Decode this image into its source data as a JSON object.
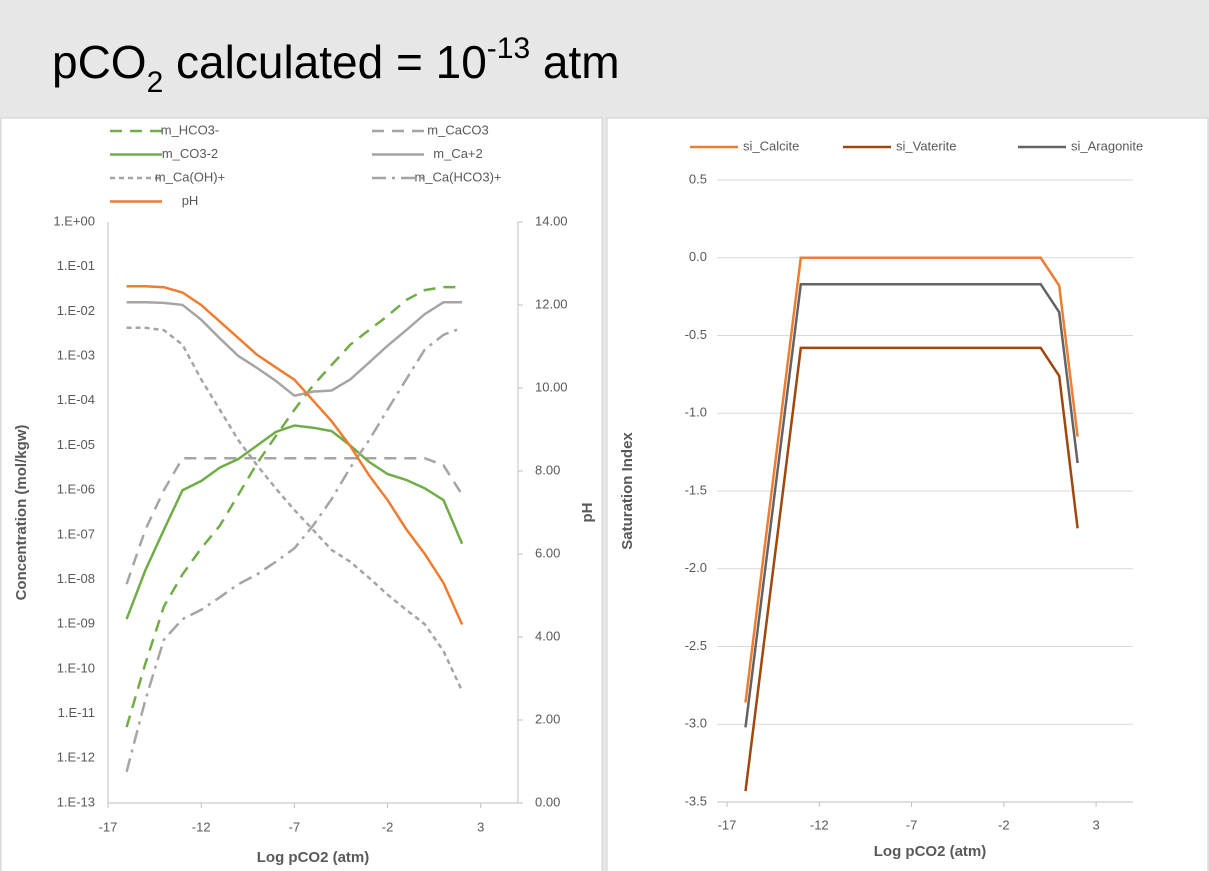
{
  "header": {
    "title": [
      "pCO",
      "2",
      " calculated = 10",
      "-13",
      " atm"
    ]
  },
  "chart_data": [
    {
      "type": "line",
      "xlabel": "Log pCO2 (atm)",
      "ylabel": "Concentration (mol/kgw)",
      "y2label": "pH",
      "xlim": [
        -17,
        5
      ],
      "xticks": [
        -17,
        -12,
        -7,
        -2,
        3
      ],
      "ylim": [
        1e-13,
        1
      ],
      "ylog": true,
      "yticks": [
        {
          "value": 1,
          "label": "1.E+00"
        },
        {
          "value": 0.1,
          "label": "1.E-01"
        },
        {
          "value": 0.01,
          "label": "1.E-02"
        },
        {
          "value": 0.001,
          "label": "1.E-03"
        },
        {
          "value": 0.0001,
          "label": "1.E-04"
        },
        {
          "value": 1e-05,
          "label": "1.E-05"
        },
        {
          "value": 1e-06,
          "label": "1.E-06"
        },
        {
          "value": 1e-07,
          "label": "1.E-07"
        },
        {
          "value": 1e-08,
          "label": "1.E-08"
        },
        {
          "value": 1e-09,
          "label": "1.E-09"
        },
        {
          "value": 1e-10,
          "label": "1.E-10"
        },
        {
          "value": 1e-11,
          "label": "1.E-11"
        },
        {
          "value": 1e-12,
          "label": "1.E-12"
        },
        {
          "value": 1e-13,
          "label": "1.E-13"
        }
      ],
      "y2lim": [
        0,
        14
      ],
      "y2ticks": [
        {
          "value": 0,
          "label": "0.00"
        },
        {
          "value": 2,
          "label": "2.00"
        },
        {
          "value": 4,
          "label": "4.00"
        },
        {
          "value": 6,
          "label": "6.00"
        },
        {
          "value": 8,
          "label": "8.00"
        },
        {
          "value": 10,
          "label": "10.00"
        },
        {
          "value": 12,
          "label": "12.00"
        },
        {
          "value": 14,
          "label": "14.00"
        }
      ],
      "grid": false,
      "x": [
        -16,
        -15,
        -14,
        -13,
        -12,
        -11,
        -10,
        -9,
        -8,
        -7,
        -6,
        -5,
        -4,
        -3,
        -2,
        -1,
        0,
        1,
        2
      ],
      "series": [
        {
          "name": "m_HCO3-",
          "color": "#70ad47",
          "dash": "dashed",
          "values": [
            5e-12,
            1.3e-10,
            2.5e-09,
            1.3e-08,
            5e-08,
            1.6e-07,
            8e-07,
            4e-06,
            1.6e-05,
            6.3e-05,
            0.00022,
            0.00063,
            0.0018,
            0.0038,
            0.0079,
            0.018,
            0.03,
            0.035,
            0.035
          ]
        },
        {
          "name": "m_CaCO3",
          "color": "#a5a5a5",
          "dash": "dashed",
          "values": [
            7.9e-09,
            1.3e-07,
            1e-06,
            5.2e-06,
            5.2e-06,
            5.2e-06,
            5.2e-06,
            5.2e-06,
            5.2e-06,
            5.2e-06,
            5.2e-06,
            5.2e-06,
            5.2e-06,
            5.2e-06,
            5.2e-06,
            5.2e-06,
            5.2e-06,
            3.6e-06,
            7.9e-07
          ]
        },
        {
          "name": "m_CO3-2",
          "color": "#70ad47",
          "dash": "solid",
          "values": [
            1.3e-09,
            1.6e-08,
            1.3e-07,
            1e-06,
            1.6e-06,
            3.2e-06,
            5e-06,
            1e-05,
            2e-05,
            2.8e-05,
            2.5e-05,
            2.1e-05,
            1e-05,
            4.3e-06,
            2.3e-06,
            1.7e-06,
            1.1e-06,
            6e-07,
            6.3e-08
          ]
        },
        {
          "name": "m_Ca+2",
          "color": "#a5a5a5",
          "dash": "solid",
          "values": [
            0.016,
            0.016,
            0.0155,
            0.014,
            0.0065,
            0.0025,
            0.001,
            0.00054,
            0.00028,
            0.00013,
            0.00016,
            0.00017,
            0.0003,
            0.00071,
            0.0017,
            0.0038,
            0.0087,
            0.016,
            0.016
          ]
        },
        {
          "name": "m_Ca(OH)+",
          "color": "#a5a5a5",
          "dash": "dotted",
          "values": [
            0.0043,
            0.0043,
            0.0038,
            0.0018,
            0.0003,
            6.3e-05,
            1.3e-05,
            3.6e-06,
            1.1e-06,
            3.6e-07,
            1.3e-07,
            4.6e-08,
            2.5e-08,
            1.1e-08,
            4.6e-09,
            2.1e-09,
            1e-09,
            2.5e-10,
            3.2e-11
          ]
        },
        {
          "name": "m_Ca(HCO3)+",
          "color": "#a5a5a5",
          "dash": "dashdot",
          "values": [
            5e-13,
            2e-11,
            4.5e-10,
            1.3e-09,
            2.1e-09,
            4e-09,
            7.9e-09,
            1.3e-08,
            2.5e-08,
            5e-08,
            1.6e-07,
            6.3e-07,
            3.2e-06,
            1.3e-05,
            6.3e-05,
            0.0003,
            0.0014,
            0.003,
            0.0043
          ]
        },
        {
          "name": "pH",
          "color": "#ed7d31",
          "dash": "solid",
          "axis": "y2",
          "values": [
            12.45,
            12.45,
            12.43,
            12.3,
            12.0,
            11.6,
            11.2,
            10.8,
            10.5,
            10.2,
            9.7,
            9.2,
            8.6,
            7.9,
            7.3,
            6.6,
            6.0,
            5.3,
            4.3
          ]
        }
      ]
    },
    {
      "type": "line",
      "xlabel": "Log pCO2 (atm)",
      "ylabel": "Saturation Index",
      "xlim": [
        -17,
        5
      ],
      "xticks": [
        -17,
        -12,
        -7,
        -2,
        3
      ],
      "ylim": [
        -3.5,
        0.5
      ],
      "yticks": [
        -3.5,
        {
          "value": -3,
          "label": "-3.0"
        },
        -2.5,
        {
          "value": -2,
          "label": "-2.0"
        },
        -1.5,
        {
          "value": -1,
          "label": "-1.0"
        },
        -0.5,
        {
          "value": 0,
          "label": "0.0"
        },
        0.5
      ],
      "grid": true,
      "x": [
        -16,
        -15,
        -14,
        -13,
        -12,
        -11,
        -10,
        -9,
        -8,
        -7,
        -6,
        -5,
        -4,
        -3,
        -2,
        -1,
        0,
        1,
        2
      ],
      "series": [
        {
          "name": "si_Calcite",
          "color": "#ed7d31",
          "dash": "solid",
          "values": [
            -2.86,
            -1.9,
            -0.95,
            0,
            0,
            0,
            0,
            0,
            0,
            0,
            0,
            0,
            0,
            0,
            0,
            0,
            0,
            -0.18,
            -1.15
          ]
        },
        {
          "name": "si_Vaterite",
          "color": "#9e480e",
          "dash": "solid",
          "values": [
            -3.43,
            -2.48,
            -1.53,
            -0.58,
            -0.58,
            -0.58,
            -0.58,
            -0.58,
            -0.58,
            -0.58,
            -0.58,
            -0.58,
            -0.58,
            -0.58,
            -0.58,
            -0.58,
            -0.58,
            -0.76,
            -1.74
          ]
        },
        {
          "name": "si_Aragonite",
          "color": "#636363",
          "dash": "solid",
          "values": [
            -3.02,
            -2.07,
            -1.12,
            -0.17,
            -0.17,
            -0.17,
            -0.17,
            -0.17,
            -0.17,
            -0.17,
            -0.17,
            -0.17,
            -0.17,
            -0.17,
            -0.17,
            -0.17,
            -0.17,
            -0.35,
            -1.32
          ]
        }
      ]
    }
  ]
}
